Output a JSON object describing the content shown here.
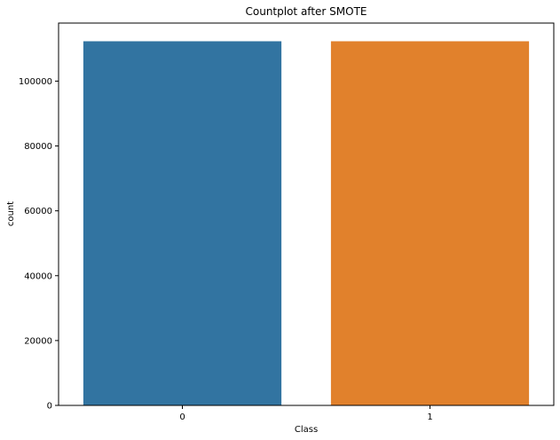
{
  "chart_data": {
    "type": "bar",
    "title": "Countplot after SMOTE",
    "xlabel": "Class",
    "ylabel": "count",
    "categories": [
      "0",
      "1"
    ],
    "values": [
      112300,
      112300
    ],
    "colors": [
      "#3274a1",
      "#e1812c"
    ],
    "ylim": [
      0,
      117900
    ],
    "yticks": [
      0,
      20000,
      40000,
      60000,
      80000,
      100000
    ],
    "grid": false,
    "legend": "none"
  }
}
